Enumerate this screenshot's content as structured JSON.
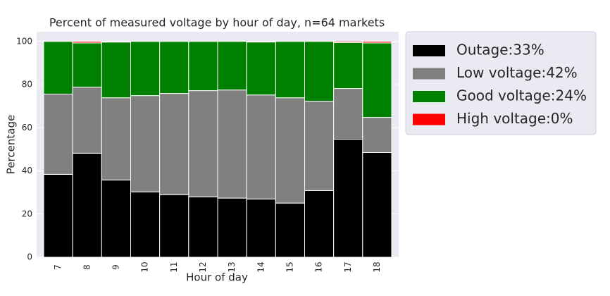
{
  "chart_data": {
    "type": "stacked-bar",
    "title": "Percent of measured voltage by hour of day, n=64 markets",
    "x_label": "Hour of day",
    "y_label": "Percentage",
    "categories": [
      "7",
      "8",
      "9",
      "10",
      "11",
      "12",
      "13",
      "14",
      "15",
      "16",
      "17",
      "18"
    ],
    "series": [
      {
        "name": "Outage:33%",
        "color": "#000000",
        "values": [
          38.4,
          48.2,
          35.8,
          30.3,
          29.0,
          28.0,
          27.4,
          27.0,
          25.1,
          30.9,
          54.7,
          48.5
        ]
      },
      {
        "name": "Low voltage:42%",
        "color": "#808080",
        "values": [
          37.2,
          30.6,
          38.1,
          44.6,
          46.9,
          49.2,
          50.1,
          48.2,
          48.8,
          41.4,
          23.5,
          16.3
        ]
      },
      {
        "name": "Good voltage:24%",
        "color": "#008000",
        "values": [
          24.4,
          20.5,
          25.8,
          25.1,
          24.1,
          22.8,
          22.5,
          24.5,
          26.1,
          27.7,
          21.3,
          34.5
        ]
      },
      {
        "name": "High voltage:0%",
        "color": "#ff0000",
        "values": [
          0,
          0.7,
          0.3,
          0,
          0,
          0,
          0,
          0,
          0,
          0,
          0.5,
          0.7
        ]
      }
    ],
    "ylim": [
      0,
      104.5
    ],
    "yticks": [
      0,
      20,
      40,
      60,
      80,
      100
    ],
    "grid": true
  }
}
